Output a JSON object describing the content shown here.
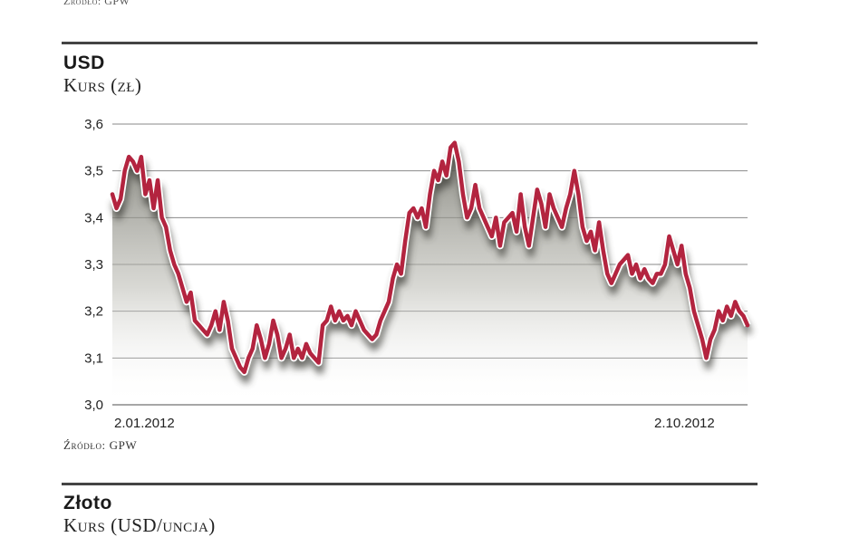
{
  "header_source": "Źródło: GPW",
  "usd_block": {
    "title": "USD",
    "subtitle": "Kurs (zł)",
    "source": "Źródło: GPW"
  },
  "gold_block": {
    "title": "Złoto",
    "subtitle": "Kurs (USD/uncja)"
  },
  "colors": {
    "line": "#b3243f",
    "grid": "#8a8a8a",
    "rule": "#444444"
  },
  "chart_data": {
    "type": "line",
    "title": "USD",
    "ylabel": "Kurs (zł)",
    "ylim": [
      3.0,
      3.6
    ],
    "yticks": [
      "3,0",
      "3,1",
      "3,2",
      "3,3",
      "3,4",
      "3,5",
      "3,6"
    ],
    "ytick_values": [
      3.0,
      3.1,
      3.2,
      3.3,
      3.4,
      3.5,
      3.6
    ],
    "xlabel_start": "2.01.2012",
    "xlabel_end": "2.10.2012",
    "grid": true,
    "series": [
      {
        "values": [
          3.45,
          3.42,
          3.44,
          3.5,
          3.53,
          3.52,
          3.5,
          3.53,
          3.45,
          3.48,
          3.42,
          3.48,
          3.4,
          3.38,
          3.33,
          3.3,
          3.28,
          3.25,
          3.22,
          3.24,
          3.18,
          3.17,
          3.16,
          3.15,
          3.17,
          3.2,
          3.16,
          3.22,
          3.18,
          3.12,
          3.1,
          3.08,
          3.07,
          3.1,
          3.12,
          3.17,
          3.14,
          3.1,
          3.13,
          3.18,
          3.15,
          3.1,
          3.12,
          3.15,
          3.1,
          3.12,
          3.1,
          3.13,
          3.11,
          3.1,
          3.09,
          3.17,
          3.18,
          3.21,
          3.18,
          3.2,
          3.18,
          3.19,
          3.17,
          3.2,
          3.18,
          3.16,
          3.15,
          3.14,
          3.15,
          3.18,
          3.2,
          3.22,
          3.27,
          3.3,
          3.28,
          3.35,
          3.41,
          3.42,
          3.4,
          3.42,
          3.38,
          3.45,
          3.5,
          3.48,
          3.52,
          3.49,
          3.55,
          3.56,
          3.52,
          3.45,
          3.4,
          3.42,
          3.47,
          3.42,
          3.4,
          3.38,
          3.36,
          3.4,
          3.34,
          3.39,
          3.4,
          3.41,
          3.37,
          3.45,
          3.38,
          3.34,
          3.4,
          3.46,
          3.43,
          3.38,
          3.45,
          3.42,
          3.4,
          3.38,
          3.42,
          3.45,
          3.5,
          3.45,
          3.38,
          3.35,
          3.37,
          3.33,
          3.39,
          3.33,
          3.28,
          3.26,
          3.28,
          3.3,
          3.31,
          3.32,
          3.28,
          3.3,
          3.27,
          3.29,
          3.27,
          3.26,
          3.28,
          3.28,
          3.3,
          3.36,
          3.33,
          3.3,
          3.34,
          3.28,
          3.25,
          3.2,
          3.17,
          3.14,
          3.1,
          3.14,
          3.16,
          3.2,
          3.18,
          3.21,
          3.19,
          3.22,
          3.2,
          3.19,
          3.17
        ]
      }
    ]
  }
}
